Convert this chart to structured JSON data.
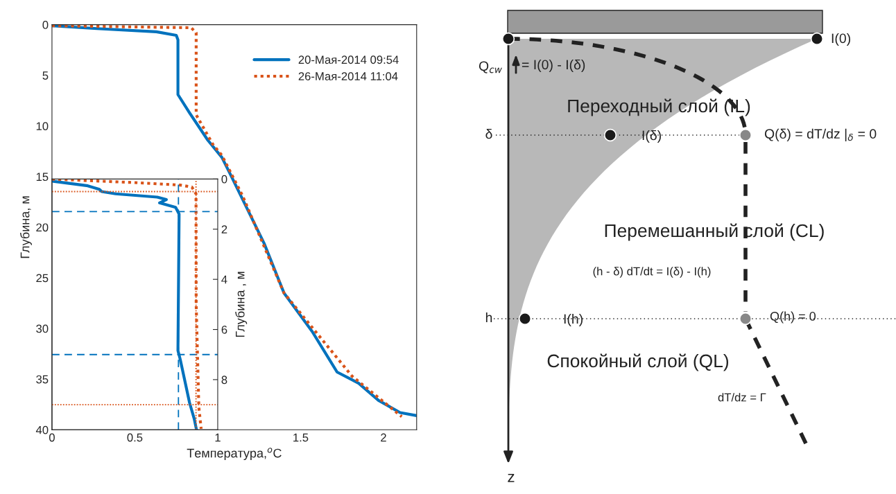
{
  "chart_data": [
    {
      "type": "line",
      "xlabel": "Температура,$^{o}$C",
      "ylabel": "Глубина, м",
      "xlim": [
        0,
        2.2
      ],
      "xticks": [
        1.5,
        2
      ],
      "ylim": [
        40,
        0
      ],
      "yticks": [
        0,
        5,
        10,
        15,
        20,
        25,
        30,
        35,
        40
      ],
      "grid": false,
      "legend": "top right",
      "series": [
        {
          "name": "20-Мая-2014 09:54",
          "color": "#0072bd",
          "line_style": "solid",
          "x": [
            0,
            0.27,
            0.63,
            0.75,
            0.76,
            0.76,
            0.83,
            0.94,
            1.025,
            1.08,
            1.28,
            1.4,
            1.57,
            1.72,
            1.85,
            1.97,
            2.1,
            2.2
          ],
          "values": [
            0.1,
            0.38,
            0.7,
            1.05,
            1.5,
            6.9,
            8.7,
            11.4,
            13.1,
            14.9,
            21.6,
            26.5,
            30.3,
            34.3,
            35.4,
            37.1,
            38.3,
            38.6
          ]
        },
        {
          "name": "26-Мая-2014 11:04",
          "color": "#d95319",
          "line_style": "dotted",
          "x": [
            0,
            0.84,
            0.87,
            0.87,
            0.97,
            1.025,
            1.15,
            1.4,
            1.81,
            2.11
          ],
          "values": [
            0.1,
            0.3,
            0.8,
            8.9,
            11.8,
            12.9,
            16.9,
            26.5,
            34.7,
            38.7
          ]
        }
      ]
    },
    {
      "type": "line",
      "ylabel": "Глубина , м",
      "xlim": [
        0,
        1
      ],
      "xticks": [
        0,
        0.5,
        1
      ],
      "ylim": [
        10,
        0
      ],
      "yticks": [
        0,
        2,
        4,
        6,
        8
      ],
      "grid": false,
      "legend": false,
      "series": [
        {
          "color": "#0072bd",
          "line_style": "solid",
          "x": [
            0.007,
            0.216,
            0.286,
            0.3,
            0.384,
            0.635,
            0.69,
            0.649,
            0.746,
            0.767,
            0.76,
            0.774,
            0.83,
            0.858,
            0.872
          ],
          "values": [
            0.09,
            0.27,
            0.41,
            0.5,
            0.59,
            0.72,
            0.82,
            0.95,
            1.13,
            1.4,
            6.84,
            7.2,
            8.92,
            9.56,
            10.0
          ]
        },
        {
          "color": "#d95319",
          "line_style": "dotted",
          "x": [
            0,
            0.495,
            0.774,
            0.844,
            0.869,
            0.87,
            0.886,
            0.9
          ],
          "values": [
            0,
            0.14,
            0.24,
            0.32,
            0.59,
            5,
            9.1,
            9.96
          ]
        }
      ],
      "ref_lines": [
        {
          "axis": "y",
          "value": 1.3,
          "color": "#0072bd",
          "line_style": "dashed"
        },
        {
          "axis": "y",
          "value": 7.0,
          "color": "#0072bd",
          "line_style": "dashed"
        },
        {
          "axis": "x",
          "value": 0.763,
          "color": "#0072bd",
          "line_style": "dashed"
        },
        {
          "axis": "y",
          "value": 0.5,
          "color": "#d95319",
          "line_style": "dotted"
        },
        {
          "axis": "y",
          "value": 9.0,
          "color": "#d95319",
          "line_style": "dotted"
        },
        {
          "axis": "x",
          "value": 0.869,
          "color": "#d95319",
          "line_style": "dotted"
        }
      ]
    },
    {
      "type": "other",
      "annotations": [
        "I(0)",
        "Q$_{cw}$",
        "= I(0) - I(δ)",
        "Переходный слой (IL)",
        "δ",
        "I(δ)",
        "Q(δ) = dT/dz |$_{δ}$ = 0",
        "Перемешанный слой (CL)",
        "(h - δ) dT/dt = I(δ) - I(h)",
        "h",
        "I(h)",
        "Q(h) = 0",
        "Спокойный слой (QL)",
        "dT/dz = Γ",
        "z"
      ]
    }
  ]
}
